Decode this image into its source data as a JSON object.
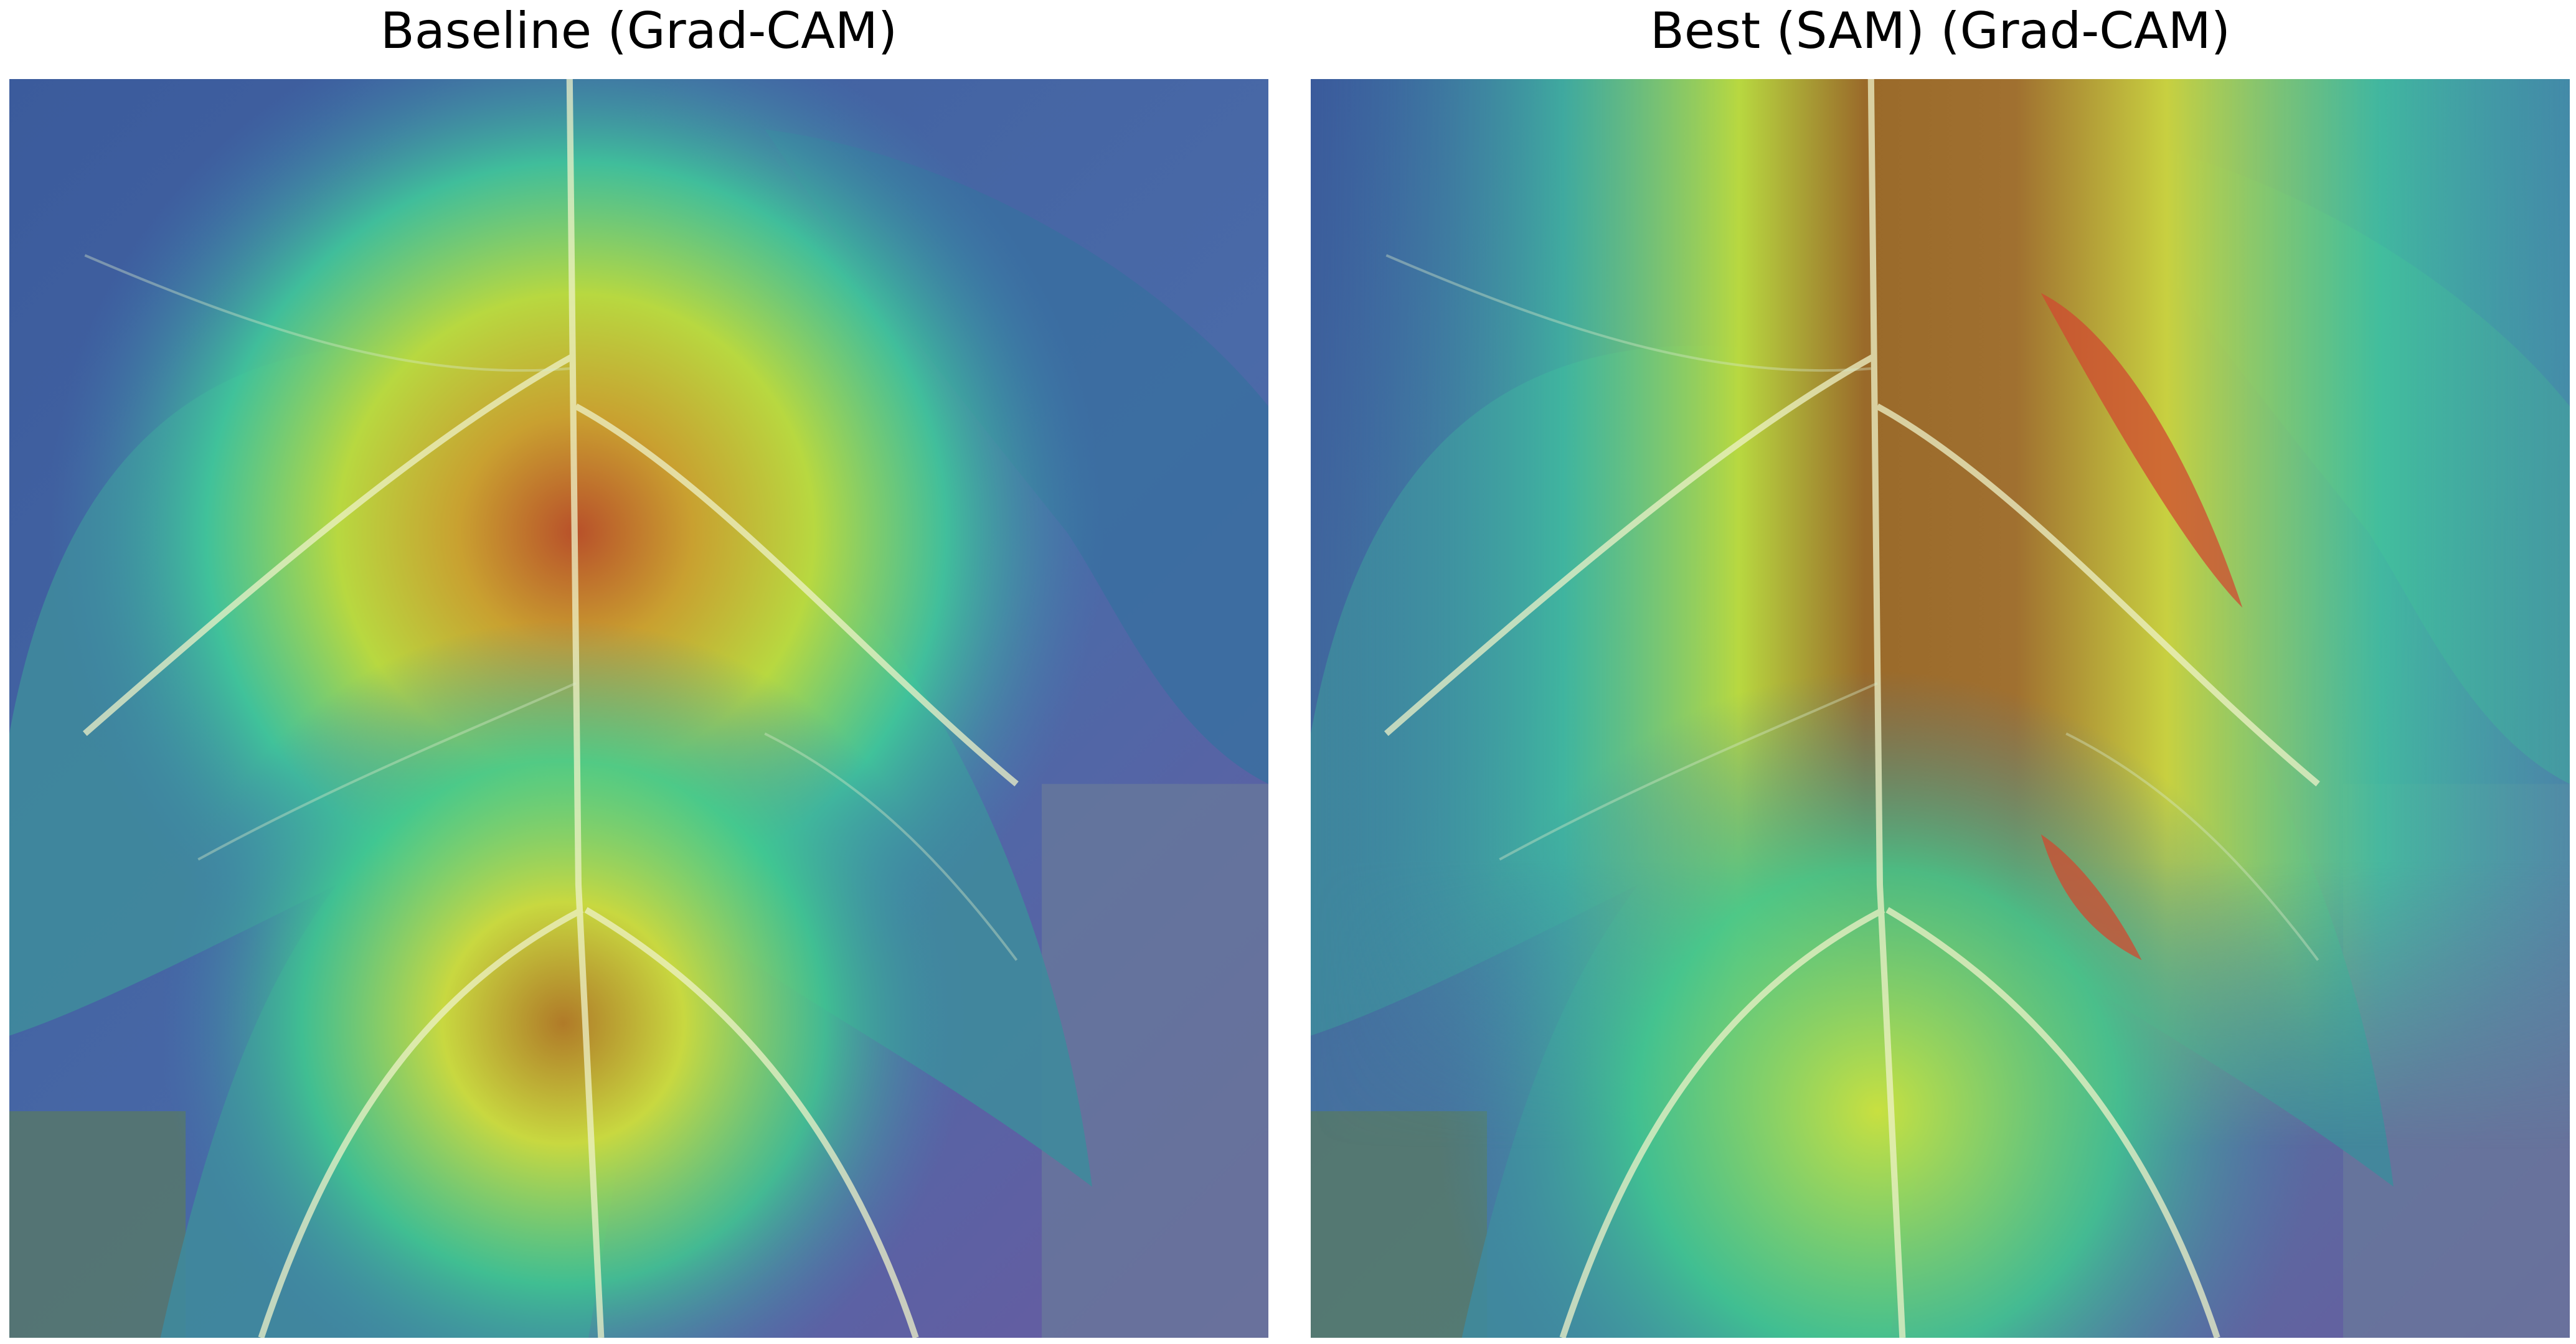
{
  "panels": [
    {
      "title": "Baseline (Grad-CAM)",
      "image": "leaf-gradcam-baseline",
      "colormap": "jet"
    },
    {
      "title": "Best (SAM) (Grad-CAM)",
      "image": "leaf-gradcam-sam",
      "colormap": "jet"
    }
  ],
  "colors": {
    "background": "#ffffff",
    "title_text": "#000000",
    "heat_low": "#3a4fa0",
    "heat_mid": "#3fc7a0",
    "heat_high": "#e0e030",
    "heat_peak": "#c0502a",
    "leaf_base": "#3d7f8a",
    "vein": "#e8f0d8"
  }
}
